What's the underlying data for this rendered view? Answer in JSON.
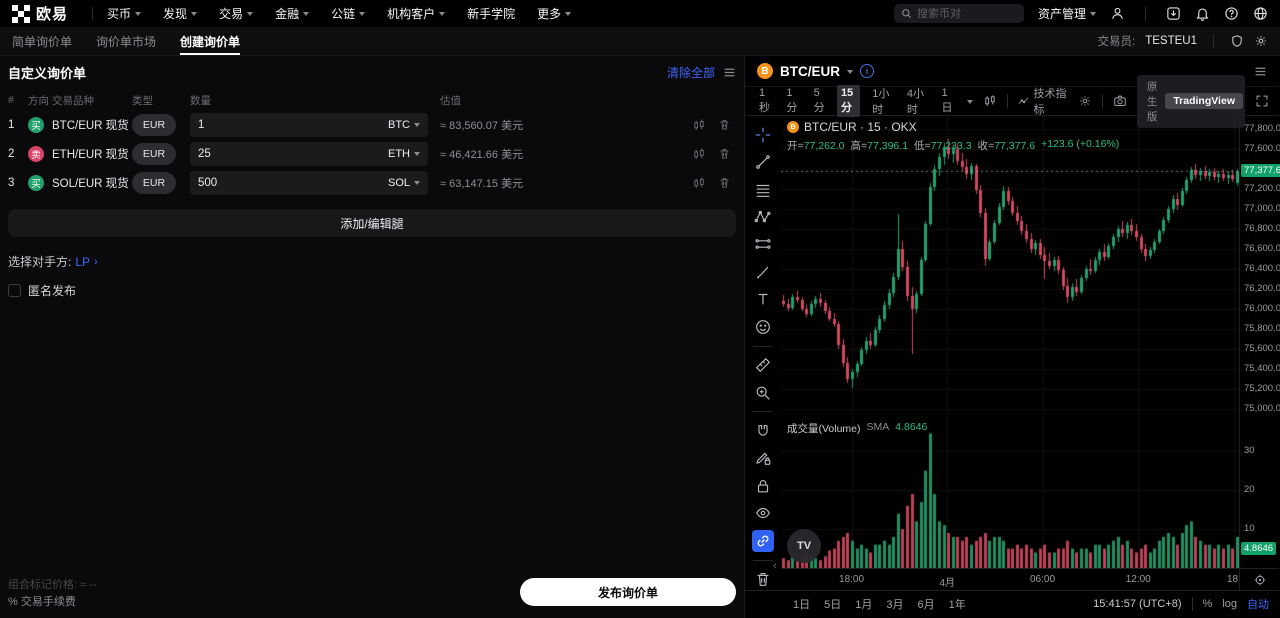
{
  "topnav": {
    "brand": "欧易",
    "menu": [
      {
        "label": "买币",
        "caret": true
      },
      {
        "label": "发现",
        "caret": true
      },
      {
        "label": "交易",
        "caret": true
      },
      {
        "label": "金融",
        "caret": true
      },
      {
        "label": "公链",
        "caret": true
      },
      {
        "label": "机构客户",
        "caret": true
      },
      {
        "label": "新手学院",
        "caret": false
      },
      {
        "label": "更多",
        "caret": true
      }
    ],
    "search_placeholder": "搜索币对",
    "assets_label": "资产管理"
  },
  "subnav": {
    "tabs": [
      {
        "label": "简单询价单",
        "active": false
      },
      {
        "label": "询价单市场",
        "active": false
      },
      {
        "label": "创建询价单",
        "active": true
      }
    ],
    "trader_label": "交易员:",
    "trader_id": "TESTEU1"
  },
  "rfq": {
    "title": "自定义询价单",
    "clear_all_label": "清除全部",
    "columns": [
      "#",
      "方向",
      "交易品种",
      "类型",
      "数量",
      "估值"
    ],
    "rows": [
      {
        "index": "1",
        "side": "买",
        "side_type": "buy",
        "pair": "BTC/EUR",
        "market": "现货",
        "type": "EUR",
        "amount": "1",
        "unit": "BTC",
        "value": "≈ 83,560.07 美元"
      },
      {
        "index": "2",
        "side": "卖",
        "side_type": "sell",
        "pair": "ETH/EUR",
        "market": "现货",
        "type": "EUR",
        "amount": "25",
        "unit": "ETH",
        "value": "≈ 46,421.66 美元"
      },
      {
        "index": "3",
        "side": "买",
        "side_type": "buy",
        "pair": "SOL/EUR",
        "market": "现货",
        "type": "EUR",
        "amount": "500",
        "unit": "SOL",
        "value": "≈ 63,147.15 美元"
      }
    ],
    "add_leg_label": "添加/编辑腿",
    "counterparty_label": "选择对手方:",
    "counterparty_value": "LP",
    "anonymous_label": "匿名发布",
    "mark_price_label": "组合标记价格:",
    "mark_price_value": "≈ --",
    "fee_label": "% 交易手续费",
    "submit_label": "发布询价单"
  },
  "chart": {
    "symbol": "BTC/EUR",
    "intervals": [
      "1秒",
      "1分",
      "5分",
      "15分",
      "1小时",
      "4小时",
      "1日"
    ],
    "active_interval": "15分",
    "indicators_label": "技术指标",
    "native_label": "原生版",
    "tradingview_label": "TradingView",
    "draw_tools": [
      "crosshair",
      "trend-line",
      "fib-retracement",
      "xabcd-pattern",
      "projection",
      "brush",
      "text",
      "emoji",
      "ruler",
      "zoom-in",
      "magnet",
      "edit-lock",
      "lock-all",
      "hide-all",
      "link",
      "delete"
    ],
    "legend_title": "BTC/EUR · 15 · OKX",
    "ohlc": {
      "open_label": "开=",
      "open": "77,262.0",
      "high_label": "高=",
      "high": "77,396.1",
      "low_label": "低=",
      "low": "77,233.3",
      "close_label": "收=",
      "close": "77,377.6",
      "change": "+123.6 (+0.16%)"
    },
    "volume_label": "成交量(Volume)",
    "sma_label": "SMA",
    "sma_value": "4.8646",
    "last_price_badge": "77,377.6",
    "volume_badge": "4.8646",
    "watermark": "TV"
  },
  "bottom_bar": {
    "ranges": [
      "1日",
      "5日",
      "1月",
      "3月",
      "6月",
      "1年"
    ],
    "clock": "15:41:57 (UTC+8)",
    "percent_label": "%",
    "log_label": "log",
    "auto_label": "自动"
  },
  "chart_data": {
    "type": "candlestick",
    "symbol": "BTC/EUR",
    "interval": "15分",
    "exchange": "OKX",
    "ohlc_last": {
      "open": 77262.0,
      "high": 77396.1,
      "low": 77233.3,
      "close": 77377.6,
      "change": 123.6,
      "change_pct": 0.16
    },
    "last_price": 77377.6,
    "price_axis": {
      "min": 74930,
      "max": 77930,
      "grid_step": 200,
      "tick_values": [
        77800,
        77600,
        77200,
        77000,
        76800,
        76600,
        76400,
        76200,
        76000,
        75800,
        75600,
        75400,
        75200,
        75000
      ],
      "tick_labels": [
        "77,800.0",
        "77,600.0",
        "77,200.0",
        "77,000.0",
        "76,800.0",
        "76,600.0",
        "76,400.0",
        "76,200.0",
        "76,000.0",
        "75,800.0",
        "75,600.0",
        "75,400.0",
        "75,200.0",
        "75,000.0"
      ]
    },
    "volume_axis": {
      "max": 36,
      "ticks": [
        30,
        20,
        10
      ],
      "sma": 4.8646
    },
    "time_labels": [
      {
        "text": "18:00",
        "pos": 0.154
      },
      {
        "text": "4月",
        "pos": 0.363
      },
      {
        "text": "06:00",
        "pos": 0.571
      },
      {
        "text": "12:00",
        "pos": 0.78
      },
      {
        "text": "18:",
        "pos": 0.989
      }
    ],
    "colors": {
      "up": "#23a06d",
      "down": "#cf4a5f",
      "last_price_badge": "#12a168",
      "grid": "rgba(255,255,255,0.06)"
    },
    "candles": [
      [
        76080,
        76140,
        76020,
        76050,
        2.5
      ],
      [
        76050,
        76100,
        75980,
        76010,
        2
      ],
      [
        76010,
        76150,
        75990,
        76120,
        3
      ],
      [
        76120,
        76180,
        76060,
        76090,
        2
      ],
      [
        76090,
        76120,
        75980,
        76000,
        3
      ],
      [
        76000,
        76040,
        75920,
        75950,
        4
      ],
      [
        75950,
        76080,
        75930,
        76050,
        3
      ],
      [
        76050,
        76130,
        76010,
        76100,
        2.5
      ],
      [
        76100,
        76160,
        76020,
        76060,
        2
      ],
      [
        76060,
        76090,
        75950,
        75980,
        3
      ],
      [
        75980,
        76020,
        75880,
        75900,
        4.5
      ],
      [
        75900,
        75960,
        75820,
        75850,
        5
      ],
      [
        75850,
        75880,
        75600,
        75640,
        7
      ],
      [
        75640,
        75700,
        75420,
        75460,
        8
      ],
      [
        75460,
        75520,
        75260,
        75300,
        9
      ],
      [
        75300,
        75400,
        75210,
        75370,
        7
      ],
      [
        75370,
        75480,
        75320,
        75450,
        5
      ],
      [
        75450,
        75620,
        75430,
        75590,
        6
      ],
      [
        75590,
        75720,
        75550,
        75680,
        5
      ],
      [
        75680,
        75760,
        75600,
        75640,
        4
      ],
      [
        75640,
        75820,
        75620,
        75790,
        6
      ],
      [
        75790,
        75940,
        75760,
        75900,
        6
      ],
      [
        75900,
        76080,
        75870,
        76040,
        7
      ],
      [
        76040,
        76200,
        76000,
        76160,
        6
      ],
      [
        76160,
        76360,
        76120,
        76320,
        8
      ],
      [
        76320,
        76950,
        76290,
        76600,
        14
      ],
      [
        76600,
        76680,
        76380,
        76420,
        10
      ],
      [
        76420,
        76480,
        76080,
        76130,
        16
      ],
      [
        76130,
        76220,
        75550,
        76000,
        19
      ],
      [
        76000,
        76180,
        75960,
        76150,
        12
      ],
      [
        76150,
        76520,
        76130,
        76490,
        17
      ],
      [
        76490,
        76880,
        76470,
        76850,
        25
      ],
      [
        76850,
        77260,
        76830,
        77220,
        34.6
      ],
      [
        77220,
        77440,
        77180,
        77400,
        19
      ],
      [
        77400,
        77560,
        77330,
        77520,
        12
      ],
      [
        77520,
        77660,
        77440,
        77620,
        11
      ],
      [
        77620,
        77700,
        77500,
        77550,
        9
      ],
      [
        77550,
        77640,
        77460,
        77600,
        8
      ],
      [
        77600,
        77650,
        77440,
        77480,
        8
      ],
      [
        77480,
        77560,
        77380,
        77420,
        7
      ],
      [
        77420,
        77500,
        77300,
        77350,
        8
      ],
      [
        77350,
        77460,
        77290,
        77430,
        6
      ],
      [
        77430,
        77450,
        77150,
        77190,
        7
      ],
      [
        77190,
        77240,
        76920,
        76960,
        8
      ],
      [
        76960,
        77010,
        76430,
        76500,
        9
      ],
      [
        76500,
        76700,
        76480,
        76670,
        7
      ],
      [
        76670,
        76890,
        76650,
        76860,
        8
      ],
      [
        76860,
        77060,
        76840,
        77020,
        8
      ],
      [
        77020,
        77230,
        76990,
        77180,
        7
      ],
      [
        77180,
        77220,
        77040,
        77080,
        5
      ],
      [
        77080,
        77120,
        76930,
        76960,
        5
      ],
      [
        76960,
        77030,
        76840,
        76880,
        6
      ],
      [
        76880,
        76930,
        76740,
        76780,
        5
      ],
      [
        76780,
        76850,
        76660,
        76700,
        6
      ],
      [
        76700,
        76760,
        76560,
        76600,
        5
      ],
      [
        76600,
        76690,
        76540,
        76660,
        4
      ],
      [
        76660,
        76700,
        76500,
        76540,
        5
      ],
      [
        76540,
        76620,
        76300,
        76480,
        6
      ],
      [
        76480,
        76560,
        76400,
        76430,
        4
      ],
      [
        76430,
        76520,
        76380,
        76490,
        4
      ],
      [
        76490,
        76530,
        76350,
        76390,
        5
      ],
      [
        76390,
        76420,
        76190,
        76230,
        5
      ],
      [
        76230,
        76310,
        76060,
        76120,
        7
      ],
      [
        76120,
        76260,
        76080,
        76220,
        5
      ],
      [
        76220,
        76300,
        76130,
        76170,
        4
      ],
      [
        76170,
        76340,
        76150,
        76310,
        5
      ],
      [
        76310,
        76430,
        76280,
        76400,
        5
      ],
      [
        76400,
        76500,
        76340,
        76380,
        4
      ],
      [
        76380,
        76520,
        76360,
        76490,
        6
      ],
      [
        76490,
        76600,
        76440,
        76570,
        6
      ],
      [
        76570,
        76650,
        76480,
        76520,
        5
      ],
      [
        76520,
        76660,
        76500,
        76630,
        6
      ],
      [
        76630,
        76750,
        76600,
        76720,
        7
      ],
      [
        76720,
        76830,
        76670,
        76800,
        8
      ],
      [
        76800,
        76880,
        76720,
        76760,
        6
      ],
      [
        76760,
        76870,
        76700,
        76840,
        7
      ],
      [
        76840,
        76900,
        76740,
        76780,
        5
      ],
      [
        76780,
        76850,
        76680,
        76720,
        4
      ],
      [
        76720,
        76750,
        76560,
        76600,
        5
      ],
      [
        76600,
        76650,
        76480,
        76530,
        6
      ],
      [
        76530,
        76620,
        76500,
        76590,
        4
      ],
      [
        76590,
        76700,
        76560,
        76670,
        5
      ],
      [
        76670,
        76800,
        76650,
        76780,
        7
      ],
      [
        76780,
        76920,
        76750,
        76890,
        8
      ],
      [
        76890,
        77030,
        76860,
        77000,
        9
      ],
      [
        77000,
        77140,
        76960,
        77100,
        8
      ],
      [
        77100,
        77160,
        76990,
        77040,
        6
      ],
      [
        77040,
        77210,
        77020,
        77180,
        9
      ],
      [
        77180,
        77320,
        77150,
        77290,
        11
      ],
      [
        77290,
        77420,
        77260,
        77390,
        12
      ],
      [
        77390,
        77450,
        77300,
        77340,
        8
      ],
      [
        77340,
        77410,
        77280,
        77380,
        7
      ],
      [
        77380,
        77430,
        77300,
        77330,
        6
      ],
      [
        77330,
        77400,
        77280,
        77370,
        6
      ],
      [
        77370,
        77410,
        77290,
        77320,
        5
      ],
      [
        77320,
        77380,
        77260,
        77350,
        6
      ],
      [
        77350,
        77400,
        77280,
        77310,
        5
      ],
      [
        77310,
        77380,
        77250,
        77340,
        6
      ],
      [
        77340,
        77390,
        77270,
        77300,
        5
      ],
      [
        77262,
        77396.1,
        77233.3,
        77377.6,
        8
      ]
    ]
  }
}
